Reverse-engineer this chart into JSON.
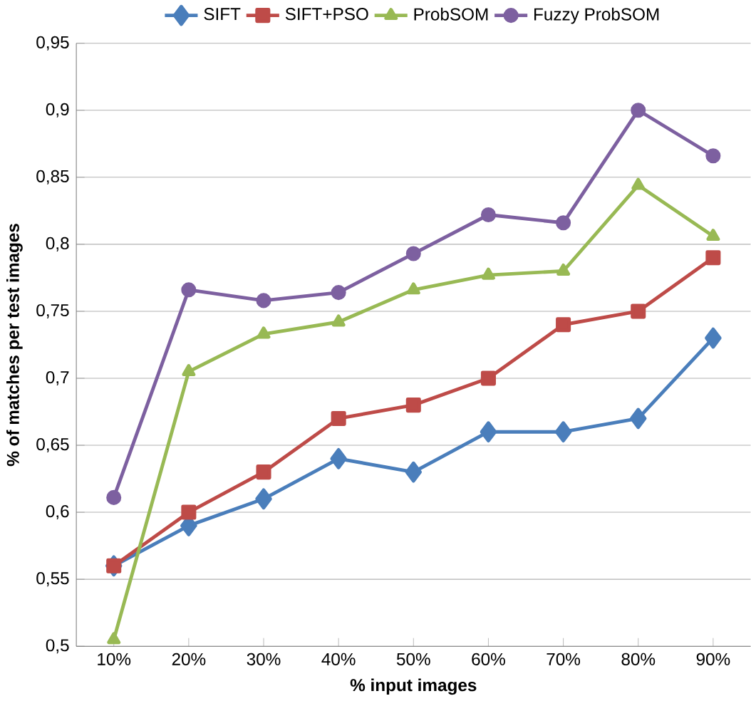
{
  "chart_data": {
    "type": "line",
    "xlabel": "% input images",
    "ylabel": "% of matches per test images",
    "categories": [
      "10%",
      "20%",
      "30%",
      "40%",
      "50%",
      "60%",
      "70%",
      "80%",
      "90%"
    ],
    "series": [
      {
        "name": "SIFT",
        "color": "#4a7ebb",
        "marker": "diamond",
        "values": [
          0.56,
          0.59,
          0.61,
          0.64,
          0.63,
          0.66,
          0.66,
          0.67,
          0.73
        ]
      },
      {
        "name": "SIFT+PSO",
        "color": "#be4b48",
        "marker": "square",
        "values": [
          0.56,
          0.6,
          0.63,
          0.67,
          0.68,
          0.7,
          0.74,
          0.75,
          0.79
        ]
      },
      {
        "name": "ProbSOM",
        "color": "#98b954",
        "marker": "triangle",
        "values": [
          0.505,
          0.705,
          0.733,
          0.742,
          0.766,
          0.777,
          0.78,
          0.844,
          0.806
        ]
      },
      {
        "name": "Fuzzy ProbSOM",
        "color": "#7d60a0",
        "marker": "circle",
        "values": [
          0.611,
          0.766,
          0.758,
          0.764,
          0.793,
          0.822,
          0.816,
          0.9,
          0.866
        ]
      }
    ],
    "ylim": [
      0.5,
      0.95
    ],
    "yticks": [
      {
        "value": 0.5,
        "label": "0,5"
      },
      {
        "value": 0.55,
        "label": "0,55"
      },
      {
        "value": 0.6,
        "label": "0,6"
      },
      {
        "value": 0.65,
        "label": "0,65"
      },
      {
        "value": 0.7,
        "label": "0,7"
      },
      {
        "value": 0.75,
        "label": "0,75"
      },
      {
        "value": 0.8,
        "label": "0,8"
      },
      {
        "value": 0.85,
        "label": "0,85"
      },
      {
        "value": 0.9,
        "label": "0,9"
      },
      {
        "value": 0.95,
        "label": "0,95"
      }
    ],
    "grid": "y",
    "legend": "top",
    "line_style": "solid"
  }
}
